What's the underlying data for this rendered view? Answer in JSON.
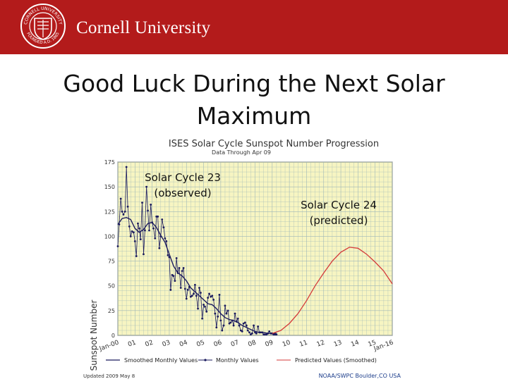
{
  "header": {
    "brand_text": "Cornell University",
    "seal_text_top": "CORNELL UNIVERSITY",
    "seal_text_bottom": "FOUNDED A.D. 1865",
    "accent_color": "#b31b1b"
  },
  "slide": {
    "title_line1": "Good Luck During the Next Solar",
    "title_line2": "Maximum"
  },
  "chart_data": {
    "type": "line",
    "title": "ISES Solar Cycle Sunspot Number Progression",
    "subtitle": "Data Through Apr 09",
    "ylabel": "Sunspot Number",
    "ylim": [
      0,
      175
    ],
    "yticks": [
      0,
      25,
      50,
      75,
      100,
      125,
      150,
      175
    ],
    "xlim": [
      2000,
      2016
    ],
    "xtick_labels": [
      "Jan-00",
      "01",
      "02",
      "03",
      "04",
      "05",
      "06",
      "07",
      "08",
      "09",
      "10",
      "11",
      "12",
      "13",
      "14",
      "15",
      "Jan-16"
    ],
    "grid": true,
    "annotations": [
      {
        "line1": "Solar Cycle 23",
        "line2": "(observed)"
      },
      {
        "line1": "Solar Cycle 24",
        "line2": "(predicted)"
      }
    ],
    "legend": {
      "placement": "bottom",
      "entries": [
        "Smoothed Monthly Values",
        "Monthly Values",
        "Predicted Values (Smoothed)"
      ]
    },
    "footer_left": "Updated 2009 May 8",
    "footer_right": "NOAA/SWPC Boulder,CO USA",
    "colors": {
      "plot_bg": "#f7f5c2",
      "grid": "#9fb7b7",
      "observed": "#1a1a5e",
      "predicted": "#d43a3a"
    },
    "series": [
      {
        "name": "Monthly Values",
        "x": [
          2000.0,
          2000.08,
          2000.17,
          2000.25,
          2000.33,
          2000.42,
          2000.5,
          2000.58,
          2000.67,
          2000.75,
          2000.83,
          2000.92,
          2001.0,
          2001.08,
          2001.17,
          2001.25,
          2001.33,
          2001.42,
          2001.5,
          2001.58,
          2001.67,
          2001.75,
          2001.83,
          2001.92,
          2002.0,
          2002.08,
          2002.17,
          2002.25,
          2002.33,
          2002.42,
          2002.5,
          2002.58,
          2002.67,
          2002.75,
          2002.83,
          2002.92,
          2003.0,
          2003.08,
          2003.17,
          2003.25,
          2003.33,
          2003.42,
          2003.5,
          2003.58,
          2003.67,
          2003.75,
          2003.83,
          2003.92,
          2004.0,
          2004.08,
          2004.17,
          2004.25,
          2004.33,
          2004.42,
          2004.5,
          2004.58,
          2004.67,
          2004.75,
          2004.83,
          2004.92,
          2005.0,
          2005.08,
          2005.17,
          2005.25,
          2005.33,
          2005.42,
          2005.5,
          2005.58,
          2005.67,
          2005.75,
          2005.83,
          2005.92,
          2006.0,
          2006.08,
          2006.17,
          2006.25,
          2006.33,
          2006.42,
          2006.5,
          2006.58,
          2006.67,
          2006.75,
          2006.83,
          2006.92,
          2007.0,
          2007.08,
          2007.17,
          2007.25,
          2007.33,
          2007.42,
          2007.5,
          2007.58,
          2007.67,
          2007.75,
          2007.83,
          2007.92,
          2008.0,
          2008.08,
          2008.17,
          2008.25,
          2008.33,
          2008.42,
          2008.5,
          2008.58,
          2008.67,
          2008.75,
          2008.83,
          2008.92,
          2009.0,
          2009.08,
          2009.17,
          2009.25
        ],
        "y": [
          90,
          112,
          138,
          125,
          122,
          125,
          170,
          130,
          110,
          100,
          105,
          104,
          95,
          80,
          113,
          108,
          97,
          134,
          82,
          106,
          150,
          126,
          106,
          132,
          114,
          108,
          98,
          120,
          120,
          88,
          100,
          117,
          109,
          98,
          95,
          81,
          79,
          46,
          61,
          60,
          55,
          78,
          63,
          68,
          48,
          65,
          68,
          47,
          37,
          46,
          49,
          39,
          40,
          42,
          51,
          40,
          27,
          48,
          43,
          17,
          31,
          29,
          24,
          38,
          42,
          39,
          40,
          36,
          22,
          8,
          19,
          41,
          15,
          5,
          10,
          30,
          22,
          25,
          12,
          13,
          15,
          10,
          22,
          14,
          17,
          10,
          5,
          4,
          12,
          13,
          10,
          5,
          3,
          1,
          2,
          10,
          3,
          2,
          9,
          3,
          3,
          3,
          1,
          1,
          1,
          2,
          4,
          2,
          2,
          1,
          1,
          1
        ]
      },
      {
        "name": "Smoothed Monthly Values",
        "x": [
          2000.0,
          2000.25,
          2000.5,
          2000.75,
          2001.0,
          2001.25,
          2001.5,
          2001.75,
          2002.0,
          2002.25,
          2002.5,
          2002.75,
          2003.0,
          2003.25,
          2003.5,
          2003.75,
          2004.0,
          2004.25,
          2004.5,
          2004.75,
          2005.0,
          2005.25,
          2005.5,
          2005.75,
          2006.0,
          2006.25,
          2006.5,
          2006.75,
          2007.0,
          2007.25,
          2007.5,
          2007.75,
          2008.0,
          2008.25,
          2008.5,
          2008.75,
          2009.0,
          2009.25
        ],
        "y": [
          112,
          118,
          119,
          117,
          108,
          104,
          107,
          113,
          114,
          109,
          101,
          94,
          82,
          70,
          63,
          60,
          55,
          48,
          44,
          40,
          36,
          32,
          31,
          27,
          22,
          18,
          16,
          15,
          13,
          10,
          8,
          6,
          4,
          3,
          3,
          2,
          2,
          2
        ]
      },
      {
        "name": "Predicted Values (Smoothed)",
        "x": [
          2009.0,
          2009.5,
          2010.0,
          2010.5,
          2011.0,
          2011.5,
          2012.0,
          2012.5,
          2013.0,
          2013.5,
          2014.0,
          2014.5,
          2015.0,
          2015.5,
          2016.0
        ],
        "y": [
          2,
          5,
          12,
          22,
          35,
          50,
          63,
          75,
          84,
          89,
          88,
          82,
          74,
          65,
          52
        ]
      }
    ]
  }
}
